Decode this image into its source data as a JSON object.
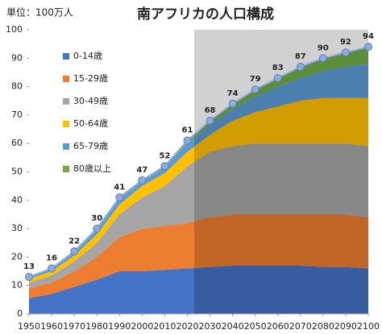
{
  "chart_data": {
    "type": "stacked_area",
    "title": "南アフリカの人口構成",
    "unit_label": "単位：100万人",
    "x": [
      1950,
      1960,
      1970,
      1980,
      1990,
      2000,
      2010,
      2020,
      2030,
      2040,
      2050,
      2060,
      2070,
      2080,
      2090,
      2100
    ],
    "series": [
      {
        "name": "0-14歳",
        "color": "#4472c4",
        "values": [
          5.5,
          7,
          9.5,
          12,
          15,
          15,
          15.5,
          16,
          16.5,
          17,
          17,
          17,
          17,
          16.5,
          16.5,
          16
        ]
      },
      {
        "name": "15-29歳",
        "color": "#ed7d31",
        "values": [
          3.5,
          4,
          5.5,
          8,
          12,
          15,
          15.5,
          16,
          17.5,
          18,
          18,
          18,
          18,
          18.5,
          18.5,
          18
        ]
      },
      {
        "name": "30-49歳",
        "color": "#a5a5a5",
        "values": [
          2,
          2.5,
          3.5,
          5,
          8,
          11,
          14,
          20,
          23,
          24,
          25,
          25,
          25,
          25,
          25,
          25
        ]
      },
      {
        "name": "50-64歳",
        "color": "#ffc000",
        "values": [
          1.2,
          1.5,
          2,
          3,
          3.5,
          4,
          4.5,
          5,
          6,
          9,
          11,
          13,
          15,
          16,
          16,
          17
        ]
      },
      {
        "name": "65-79歳",
        "color": "#5b9bd5",
        "values": [
          0.6,
          0.7,
          1,
          1.5,
          2,
          1.5,
          2,
          3,
          3.5,
          4,
          5.5,
          7,
          8,
          9.5,
          11,
          12
        ]
      },
      {
        "name": "80歳以上",
        "color": "#70ad47",
        "values": [
          0.2,
          0.3,
          0.5,
          0.5,
          0.5,
          0.5,
          0.5,
          1,
          1.5,
          2,
          2.5,
          3,
          4,
          4.5,
          5,
          6
        ]
      }
    ],
    "total": {
      "color": "#8faadc",
      "values": [
        13,
        16,
        22,
        30,
        41,
        47,
        52,
        61,
        68,
        74,
        79,
        83,
        87,
        90,
        92,
        94
      ]
    },
    "xlim": [
      1950,
      2100
    ],
    "xticks": [
      1950,
      1960,
      1970,
      1980,
      1990,
      2000,
      2010,
      2020,
      2030,
      2040,
      2050,
      2060,
      2070,
      2080,
      2090,
      2100
    ],
    "ylim": [
      0,
      100
    ],
    "yticks": [
      0,
      10,
      20,
      30,
      40,
      50,
      60,
      70,
      80,
      90,
      100
    ],
    "legend": "upper-left"
  }
}
